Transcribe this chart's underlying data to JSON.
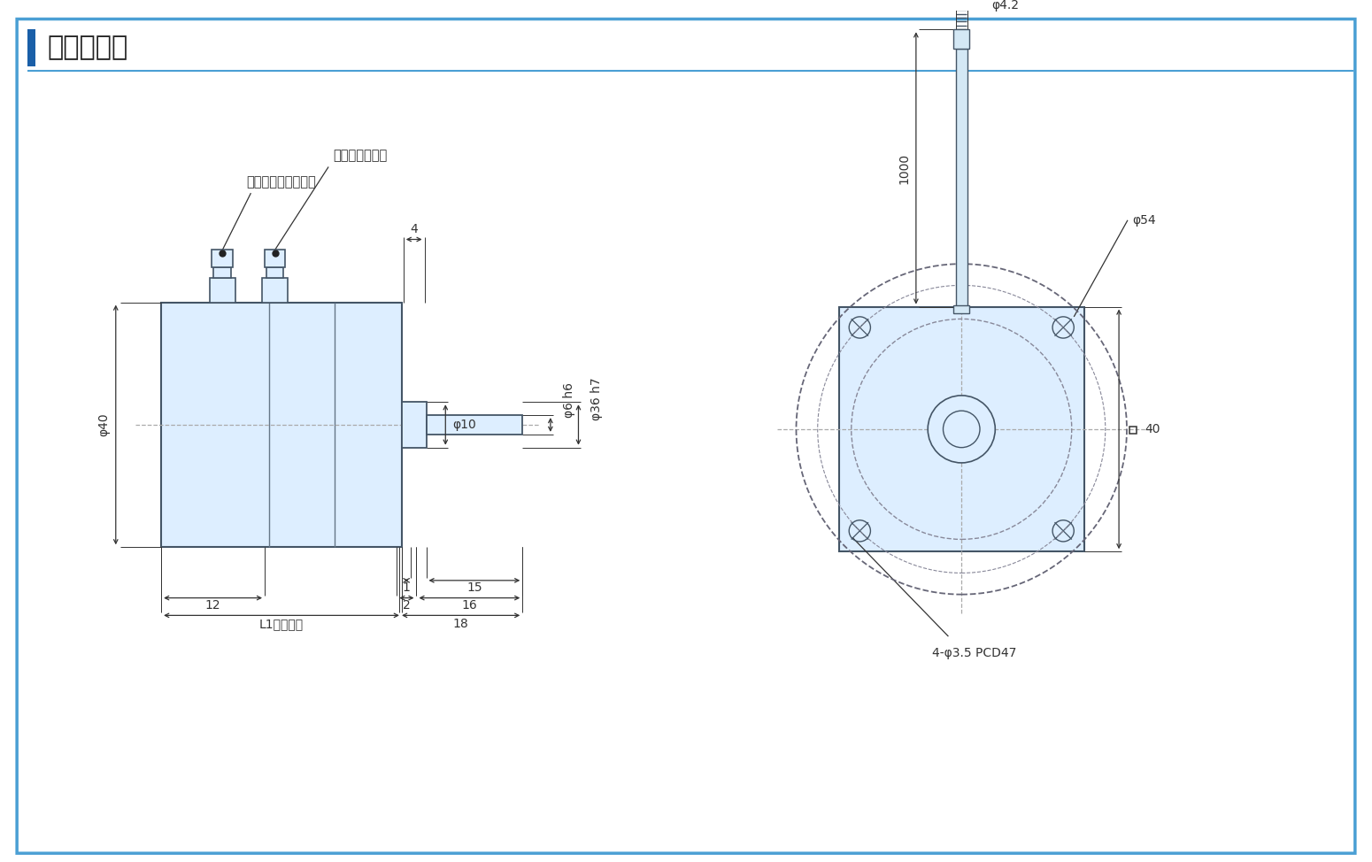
{
  "title": "外形寸法図",
  "title_accent_color": "#1a5fa8",
  "bg_color": "#ffffff",
  "border_color": "#4a9fd4",
  "body_fill": "#ddeeff",
  "line_color": "#333333",
  "dim_color": "#333333",
  "centerline_color": "#888888",
  "annotations": {
    "motor_lead": "モータリード線",
    "encoder_lead": "エンコーダリード線",
    "dim_4": "4",
    "dim_phi10": "φ10",
    "dim_phi6h6": "φ6 h6",
    "dim_phi36h7": "φ36 h7",
    "dim_phi40": "φ40",
    "dim_1": "1",
    "dim_2": "2",
    "dim_15": "15",
    "dim_16": "16",
    "dim_L1": "L1（胴長）",
    "dim_18": "18",
    "dim_12": "12",
    "dim_phi4p2": "φ4.2",
    "dim_1000": "1000",
    "dim_phi54": "φ54",
    "dim_sq40": "□40",
    "dim_4phi35_pcd47": "4-φ3.5 PCD47"
  }
}
